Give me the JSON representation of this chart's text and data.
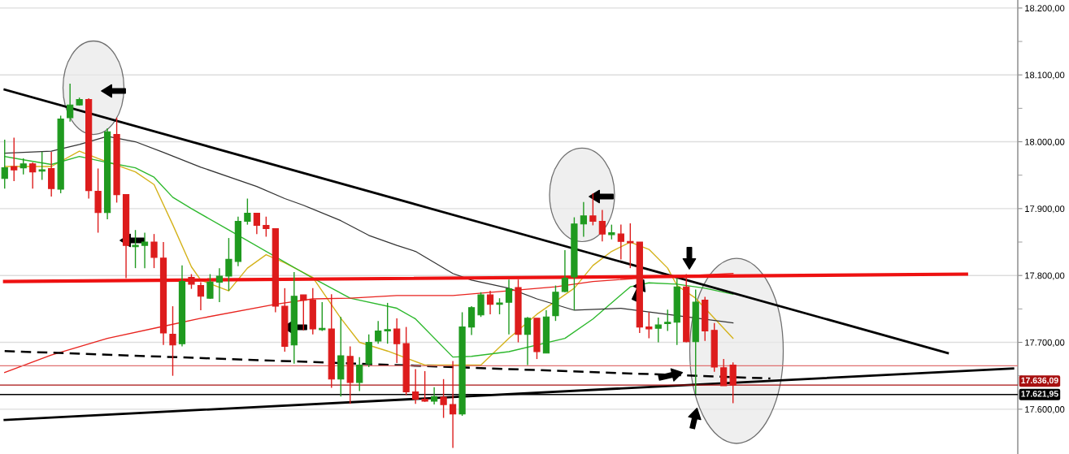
{
  "chart_data": {
    "type": "candlestick",
    "grid": "y",
    "categories": [
      null,
      null,
      null,
      null,
      null,
      null,
      null,
      null,
      null,
      null,
      null,
      null,
      null,
      null,
      null,
      null,
      null,
      null,
      null,
      null,
      null,
      null,
      null,
      null,
      null,
      null,
      null,
      null,
      null,
      null,
      null,
      null,
      null,
      null,
      null,
      null,
      null,
      null,
      null,
      null,
      null,
      null,
      null,
      null,
      null,
      null,
      null,
      null,
      null,
      null,
      null,
      null,
      null,
      null,
      null,
      null,
      null,
      null,
      null,
      null,
      null,
      null,
      null,
      null,
      null,
      null,
      null,
      null,
      null,
      null,
      null,
      null,
      null,
      null,
      null,
      null,
      null,
      null,
      null,
      null,
      null,
      null,
      null,
      null,
      null,
      null,
      null,
      null,
      null,
      null,
      null,
      null,
      null,
      null,
      null,
      null,
      null,
      null,
      null,
      null,
      null,
      null,
      null,
      null,
      null,
      null,
      null,
      null,
      null
    ],
    "ohlc": [
      [
        17945,
        18003,
        17930,
        17961
      ],
      [
        17963,
        18006,
        17941,
        17958
      ],
      [
        17961,
        17975,
        17951,
        17967
      ],
      [
        17967,
        17969,
        17930,
        17955
      ],
      [
        17956,
        17985,
        17943,
        17958
      ],
      [
        17960,
        17985,
        17918,
        17930
      ],
      [
        17929,
        18039,
        17923,
        18034
      ],
      [
        18036,
        18087,
        18030,
        18055
      ],
      [
        18055,
        18066,
        18054,
        18063
      ],
      [
        18063,
        18065,
        17915,
        17927
      ],
      [
        17926,
        17960,
        17864,
        17894
      ],
      [
        17894,
        18020,
        17884,
        18015
      ],
      [
        18011,
        18036,
        17909,
        17921
      ],
      [
        17921,
        17921,
        17796,
        17845
      ],
      [
        17843,
        17868,
        17811,
        17845
      ],
      [
        17845,
        17864,
        17811,
        17850
      ],
      [
        17850,
        17862,
        17811,
        17827
      ],
      [
        17826,
        17850,
        17696,
        17714
      ],
      [
        17712,
        17754,
        17650,
        17696
      ],
      [
        17698,
        17815,
        17694,
        17791
      ],
      [
        17797,
        17802,
        17780,
        17787
      ],
      [
        17785,
        17790,
        17748,
        17769
      ],
      [
        17766,
        17802,
        17765,
        17790
      ],
      [
        17790,
        17811,
        17760,
        17799
      ],
      [
        17799,
        17856,
        17777,
        17824
      ],
      [
        17821,
        17888,
        17814,
        17881
      ],
      [
        17881,
        17915,
        17876,
        17893
      ],
      [
        17893,
        17893,
        17862,
        17875
      ],
      [
        17875,
        17888,
        17858,
        17870
      ],
      [
        17870,
        17870,
        17745,
        17754
      ],
      [
        17754,
        17781,
        17686,
        17694
      ],
      [
        17696,
        17805,
        17668,
        17769
      ],
      [
        17771,
        17771,
        17718,
        17763
      ],
      [
        17763,
        17781,
        17712,
        17720
      ],
      [
        17719,
        17760,
        17717,
        17721
      ],
      [
        17720,
        17772,
        17632,
        17645
      ],
      [
        17645,
        17738,
        17619,
        17680
      ],
      [
        17679,
        17694,
        17608,
        17640
      ],
      [
        17640,
        17678,
        17627,
        17666
      ],
      [
        17668,
        17712,
        17663,
        17700
      ],
      [
        17702,
        17732,
        17698,
        17717
      ],
      [
        17717,
        17759,
        17698,
        17719
      ],
      [
        17720,
        17736,
        17669,
        17698
      ],
      [
        17698,
        17723,
        17621,
        17626
      ],
      [
        17626,
        17660,
        17608,
        17615
      ],
      [
        17615,
        17657,
        17611,
        17612
      ],
      [
        17612,
        17633,
        17607,
        17619
      ],
      [
        17618,
        17645,
        17587,
        17607
      ],
      [
        17607,
        17672,
        17542,
        17593
      ],
      [
        17593,
        17745,
        17590,
        17723
      ],
      [
        17723,
        17754,
        17711,
        17752
      ],
      [
        17741,
        17775,
        17738,
        17771
      ],
      [
        17771,
        17777,
        17742,
        17757
      ],
      [
        17757,
        17766,
        17742,
        17759
      ],
      [
        17760,
        17794,
        17712,
        17780
      ],
      [
        17782,
        17794,
        17700,
        17712
      ],
      [
        17712,
        17738,
        17666,
        17736
      ],
      [
        17736,
        17736,
        17675,
        17686
      ],
      [
        17684,
        17748,
        17684,
        17738
      ],
      [
        17740,
        17785,
        17732,
        17775
      ],
      [
        17776,
        17838,
        17775,
        17796
      ],
      [
        17798,
        17887,
        17748,
        17877
      ],
      [
        17877,
        17910,
        17858,
        17889
      ],
      [
        17889,
        17923,
        17875,
        17881
      ],
      [
        17881,
        17898,
        17851,
        17862
      ],
      [
        17861,
        17876,
        17854,
        17864
      ],
      [
        17862,
        17876,
        17824,
        17851
      ],
      [
        17851,
        17878,
        17811,
        17849
      ],
      [
        17850,
        17850,
        17714,
        17723
      ],
      [
        17723,
        17745,
        17706,
        17720
      ],
      [
        17721,
        17737,
        17700,
        17726
      ],
      [
        17728,
        17749,
        17717,
        17730
      ],
      [
        17730,
        17796,
        17696,
        17783
      ],
      [
        17783,
        17802,
        17700,
        17701
      ],
      [
        17701,
        17779,
        17623,
        17760
      ],
      [
        17763,
        17768,
        17702,
        17717
      ],
      [
        17718,
        17729,
        17656,
        17663
      ],
      [
        17662,
        17675,
        17635,
        17635
      ],
      [
        17666,
        17670,
        17609,
        17636.09
      ],
      null,
      null,
      null,
      null,
      null,
      null,
      null,
      null,
      null,
      null,
      null,
      null,
      null,
      null,
      null,
      null,
      null,
      null,
      null,
      null,
      null,
      null,
      null,
      null,
      null,
      null,
      null,
      null,
      null,
      null
    ],
    "colors": [
      "#1f9a1f",
      "#dd1c1c",
      "#1f9a1f",
      "#dd1c1c",
      "#1f9a1f",
      "#dd1c1c",
      "#1f9a1f",
      "#1f9a1f",
      "#1f9a1f",
      "#dd1c1c",
      "#dd1c1c",
      "#1f9a1f",
      "#dd1c1c",
      "#dd1c1c",
      "#1f9a1f",
      "#1f9a1f",
      "#dd1c1c",
      "#dd1c1c",
      "#dd1c1c",
      "#1f9a1f",
      "#dd1c1c",
      "#dd1c1c",
      "#1f9a1f",
      "#1f9a1f",
      "#1f9a1f",
      "#1f9a1f",
      "#1f9a1f",
      "#dd1c1c",
      "#dd1c1c",
      "#dd1c1c",
      "#dd1c1c",
      "#1f9a1f",
      "#dd1c1c",
      "#dd1c1c",
      "#1f9a1f",
      "#dd1c1c",
      "#1f9a1f",
      "#dd1c1c",
      "#1f9a1f",
      "#1f9a1f",
      "#1f9a1f",
      "#1f9a1f",
      "#dd1c1c",
      "#dd1c1c",
      "#dd1c1c",
      "#dd1c1c",
      "#1f9a1f",
      "#dd1c1c",
      "#dd1c1c",
      "#1f9a1f",
      "#1f9a1f",
      "#1f9a1f",
      "#dd1c1c",
      "#1f9a1f",
      "#1f9a1f",
      "#dd1c1c",
      "#1f9a1f",
      "#dd1c1c",
      "#1f9a1f",
      "#1f9a1f",
      "#1f9a1f",
      "#1f9a1f",
      "#1f9a1f",
      "#dd1c1c",
      "#dd1c1c",
      "#1f9a1f",
      "#dd1c1c",
      "#dd1c1c",
      "#dd1c1c",
      "#dd1c1c",
      "#1f9a1f",
      "#1f9a1f",
      "#1f9a1f",
      "#dd1c1c",
      "#1f9a1f",
      "#dd1c1c",
      "#dd1c1c",
      "#dd1c1c",
      "#dd1c1c",
      null,
      null,
      null,
      null,
      null,
      null,
      null,
      null,
      null,
      null,
      null,
      null,
      null,
      null,
      null,
      null,
      null,
      null,
      null,
      null,
      null,
      null,
      null,
      null,
      null,
      null,
      null,
      null,
      null,
      null
    ],
    "series": [
      {
        "type": "line",
        "color": "#d4b21a",
        "line_style": "solid",
        "values": [
          17963,
          null,
          null,
          null,
          null,
          17963,
          null,
          null,
          17986,
          null,
          17975,
          null,
          null,
          null,
          17955,
          null,
          17936,
          null,
          17876,
          null,
          17813,
          17793,
          null,
          null,
          17777,
          null,
          17811,
          null,
          17831,
          null,
          17819,
          null,
          null,
          17797,
          null,
          null,
          17736,
          null,
          17700,
          null,
          null,
          17687,
          null,
          null,
          null,
          17666,
          null,
          null,
          null,
          null,
          null,
          17666,
          null,
          null,
          17706,
          null,
          null,
          17742,
          null,
          null,
          null,
          17781,
          null,
          17815,
          null,
          17836,
          null,
          17850,
          null,
          17839,
          null,
          17811,
          17785,
          null,
          17766,
          null,
          null,
          null,
          17706,
          null,
          null,
          null,
          null,
          null,
          null,
          null,
          null,
          null,
          null,
          null,
          null,
          null,
          null,
          null,
          null,
          null,
          null,
          null,
          null,
          null,
          null,
          null,
          null,
          null,
          null,
          null,
          null,
          null,
          null
        ]
      },
      {
        "type": "line",
        "color": "#2db82d",
        "line_style": "solid",
        "values": [
          17978,
          null,
          17973,
          null,
          null,
          17966,
          null,
          null,
          17978,
          null,
          null,
          17969,
          null,
          null,
          17961,
          null,
          17947,
          null,
          17917,
          null,
          17900,
          null,
          null,
          null,
          17868,
          null,
          null,
          null,
          null,
          null,
          null,
          null,
          null,
          17796,
          null,
          null,
          null,
          17766,
          null,
          null,
          null,
          null,
          17751,
          null,
          17735,
          null,
          null,
          null,
          17678,
          null,
          17679,
          null,
          null,
          null,
          17686,
          null,
          null,
          null,
          null,
          null,
          17706,
          null,
          null,
          17735,
          null,
          null,
          null,
          17783,
          null,
          17789,
          null,
          null,
          17787,
          null,
          null,
          17781,
          null,
          null,
          17772,
          null,
          null,
          null,
          null,
          null,
          null,
          null,
          null,
          null,
          null,
          null,
          null,
          null,
          null,
          null,
          null,
          null,
          null,
          null,
          null,
          null,
          null,
          null,
          null,
          null,
          null,
          null,
          null,
          null,
          null
        ]
      },
      {
        "type": "line",
        "color": "#333333",
        "line_style": "solid",
        "values": [
          17983,
          null,
          null,
          null,
          null,
          17986,
          null,
          null,
          17996,
          null,
          null,
          18008,
          null,
          null,
          18000,
          null,
          null,
          17984,
          null,
          null,
          null,
          17962,
          null,
          null,
          null,
          null,
          null,
          17933,
          null,
          null,
          17915,
          null,
          17905,
          null,
          null,
          null,
          17882,
          null,
          null,
          17860,
          null,
          null,
          17845,
          null,
          17836,
          null,
          null,
          null,
          17803,
          null,
          17793,
          null,
          null,
          null,
          17781,
          null,
          null,
          17765,
          null,
          null,
          null,
          17748,
          null,
          null,
          null,
          null,
          17751,
          null,
          null,
          null,
          null,
          null,
          null,
          null,
          null,
          null,
          null,
          null,
          17729,
          null,
          null,
          null,
          null,
          null,
          null,
          null,
          null,
          null,
          null,
          null,
          null,
          null,
          null,
          null,
          null,
          null,
          null,
          null,
          null,
          null,
          null,
          null,
          null,
          null,
          null,
          null,
          null,
          null,
          null
        ]
      },
      {
        "type": "line",
        "color": "#e8231e",
        "line_style": "solid",
        "values": [
          17655,
          null,
          null,
          null,
          null,
          17681,
          null,
          null,
          null,
          null,
          null,
          17706,
          null,
          null,
          null,
          null,
          null,
          17724,
          null,
          null,
          null,
          17736,
          null,
          null,
          null,
          null,
          null,
          null,
          null,
          17757,
          null,
          null,
          null,
          17765,
          null,
          null,
          null,
          17766,
          null,
          null,
          null,
          null,
          17770,
          null,
          null,
          null,
          null,
          null,
          17770,
          null,
          null,
          null,
          null,
          null,
          null,
          null,
          null,
          null,
          null,
          17783,
          null,
          null,
          null,
          17791,
          null,
          null,
          null,
          null,
          17796,
          null,
          null,
          null,
          17799,
          null,
          null,
          null,
          null,
          null,
          17803,
          null,
          null,
          null,
          null,
          null,
          null,
          null,
          null,
          null,
          null,
          null,
          null,
          null,
          null,
          null,
          null,
          null,
          null,
          null,
          null,
          null,
          null,
          null,
          null,
          null,
          null,
          null,
          null,
          null,
          null
        ]
      },
      {
        "type": "line",
        "color": "#000000",
        "line_style": "solid",
        "values": [
          18078,
          null,
          null,
          null,
          null,
          null,
          null,
          null,
          null,
          null,
          null,
          null,
          null,
          null,
          null,
          null,
          null,
          null,
          null,
          null,
          null,
          null,
          null,
          null,
          null,
          null,
          null,
          null,
          null,
          null,
          null,
          null,
          null,
          null,
          null,
          null,
          null,
          null,
          null,
          null,
          null,
          null,
          null,
          null,
          null,
          null,
          null,
          null,
          null,
          null,
          null,
          null,
          null,
          null,
          null,
          null,
          null,
          null,
          null,
          null,
          null,
          null,
          null,
          null,
          null,
          null,
          null,
          null,
          null,
          null,
          null,
          null,
          null,
          null,
          null,
          null,
          null,
          null,
          null,
          null,
          null,
          null,
          null,
          null,
          null,
          null,
          null,
          null,
          null,
          null,
          null,
          null,
          null,
          null,
          null,
          null,
          null,
          null,
          null,
          null,
          null,
          17684,
          null,
          null,
          null,
          null,
          null,
          null,
          null
        ]
      },
      {
        "type": "line",
        "color": "#000000",
        "line_style": "solid",
        "values": [
          17584,
          null,
          null,
          null,
          null,
          null,
          null,
          null,
          null,
          null,
          null,
          null,
          null,
          null,
          null,
          null,
          null,
          null,
          null,
          null,
          null,
          null,
          null,
          null,
          null,
          null,
          null,
          null,
          null,
          null,
          null,
          null,
          null,
          null,
          null,
          null,
          null,
          null,
          null,
          null,
          null,
          null,
          null,
          null,
          null,
          null,
          null,
          null,
          null,
          null,
          null,
          null,
          null,
          null,
          null,
          null,
          null,
          null,
          null,
          null,
          null,
          null,
          null,
          null,
          null,
          null,
          null,
          null,
          null,
          null,
          null,
          null,
          null,
          null,
          null,
          null,
          null,
          null,
          null,
          null,
          null,
          null,
          null,
          null,
          null,
          null,
          null,
          null,
          null,
          null,
          null,
          null,
          null,
          null,
          null,
          null,
          null,
          null,
          null,
          null,
          null,
          null,
          null,
          null,
          null,
          null,
          null,
          null,
          17661
        ]
      },
      {
        "type": "line",
        "color": "#000000",
        "line_style": "dashed",
        "values": [
          17687,
          null,
          null,
          null,
          null,
          null,
          null,
          null,
          null,
          null,
          null,
          null,
          null,
          null,
          null,
          null,
          null,
          null,
          null,
          null,
          null,
          null,
          null,
          null,
          null,
          null,
          null,
          null,
          null,
          null,
          null,
          null,
          null,
          null,
          null,
          null,
          null,
          null,
          null,
          null,
          null,
          null,
          null,
          null,
          null,
          null,
          null,
          null,
          null,
          null,
          null,
          null,
          null,
          null,
          null,
          null,
          null,
          null,
          null,
          null,
          null,
          null,
          null,
          null,
          null,
          null,
          null,
          null,
          null,
          null,
          null,
          null,
          null,
          null,
          null,
          null,
          null,
          null,
          null,
          null,
          null,
          null,
          17646,
          null,
          null,
          null,
          null,
          null,
          null,
          null,
          null,
          null,
          null,
          null,
          null,
          null,
          null,
          null,
          null,
          null,
          null,
          null,
          null,
          null,
          null,
          null,
          null,
          null,
          null
        ]
      },
      {
        "type": "line",
        "color": "#ee1111",
        "line_style": "solid",
        "values": [
          17791,
          null,
          null,
          null,
          null,
          null,
          null,
          null,
          null,
          null,
          null,
          null,
          null,
          null,
          null,
          null,
          null,
          null,
          null,
          null,
          null,
          null,
          null,
          null,
          null,
          null,
          null,
          null,
          null,
          null,
          null,
          null,
          null,
          null,
          null,
          null,
          null,
          null,
          null,
          null,
          null,
          null,
          null,
          null,
          null,
          null,
          null,
          null,
          null,
          null,
          null,
          null,
          null,
          null,
          null,
          null,
          null,
          null,
          null,
          null,
          null,
          null,
          null,
          null,
          null,
          null,
          null,
          null,
          null,
          null,
          null,
          null,
          null,
          null,
          null,
          null,
          null,
          null,
          null,
          null,
          null,
          null,
          null,
          null,
          null,
          null,
          null,
          null,
          null,
          null,
          null,
          null,
          null,
          null,
          null,
          null,
          null,
          null,
          null,
          null,
          null,
          null,
          null,
          17802,
          null,
          null,
          null,
          null,
          null
        ]
      }
    ],
    "ylim": [
      17533,
      18212
    ],
    "yticks": [
      {
        "value": 17600,
        "label": "17.600,00"
      },
      {
        "value": 17650,
        "label": null
      },
      {
        "value": 17700,
        "label": "17.700,00"
      },
      {
        "value": 17750,
        "label": null
      },
      {
        "value": 17800,
        "label": "17.800,00"
      },
      {
        "value": 17850,
        "label": null
      },
      {
        "value": 17900,
        "label": "17.900,00"
      },
      {
        "value": 17950,
        "label": null
      },
      {
        "value": 18000,
        "label": "18.000,00"
      },
      {
        "value": 18050,
        "label": null
      },
      {
        "value": 18100,
        "label": "18.100,00"
      },
      {
        "value": 18150,
        "label": null
      },
      {
        "value": 18200,
        "label": "18.200,00"
      }
    ],
    "ref_lines": [
      {
        "axis": "y",
        "value": 17665,
        "color": "#e07070"
      },
      {
        "axis": "y",
        "value": 17636.09,
        "label": "17.636,09",
        "color": "#a81010"
      },
      {
        "axis": "y",
        "value": 17621.95,
        "label": "17.621,95",
        "color": "#000000"
      }
    ]
  }
}
